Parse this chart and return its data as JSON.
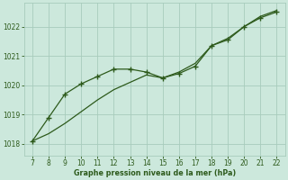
{
  "line1_x": [
    7,
    8,
    9,
    10,
    11,
    12,
    13,
    14,
    15,
    16,
    17,
    18,
    19,
    20,
    21,
    22
  ],
  "line1_y": [
    1018.1,
    1018.9,
    1019.7,
    1020.05,
    1020.3,
    1020.55,
    1020.55,
    1020.45,
    1020.25,
    1020.4,
    1020.65,
    1021.35,
    1021.55,
    1022.0,
    1022.3,
    1022.5
  ],
  "line2_x": [
    7,
    8,
    9,
    10,
    11,
    12,
    13,
    14,
    15,
    16,
    17,
    18,
    19,
    20,
    21,
    22
  ],
  "line2_y": [
    1018.1,
    1018.35,
    1018.7,
    1019.1,
    1019.5,
    1019.85,
    1020.1,
    1020.35,
    1020.25,
    1020.45,
    1020.75,
    1021.35,
    1021.6,
    1022.0,
    1022.35,
    1022.55
  ],
  "line_color": "#2d5a1b",
  "bg_color": "#cce8dc",
  "grid_color": "#a8ccbc",
  "xlabel": "Graphe pression niveau de la mer (hPa)",
  "xlim": [
    6.5,
    22.5
  ],
  "ylim": [
    1017.6,
    1022.8
  ],
  "xticks": [
    7,
    8,
    9,
    10,
    11,
    12,
    13,
    14,
    15,
    16,
    17,
    18,
    19,
    20,
    21,
    22
  ],
  "yticks": [
    1018,
    1019,
    1020,
    1021,
    1022
  ],
  "tick_color": "#2d5a1b",
  "label_color": "#2d5a1b",
  "marker": "+"
}
